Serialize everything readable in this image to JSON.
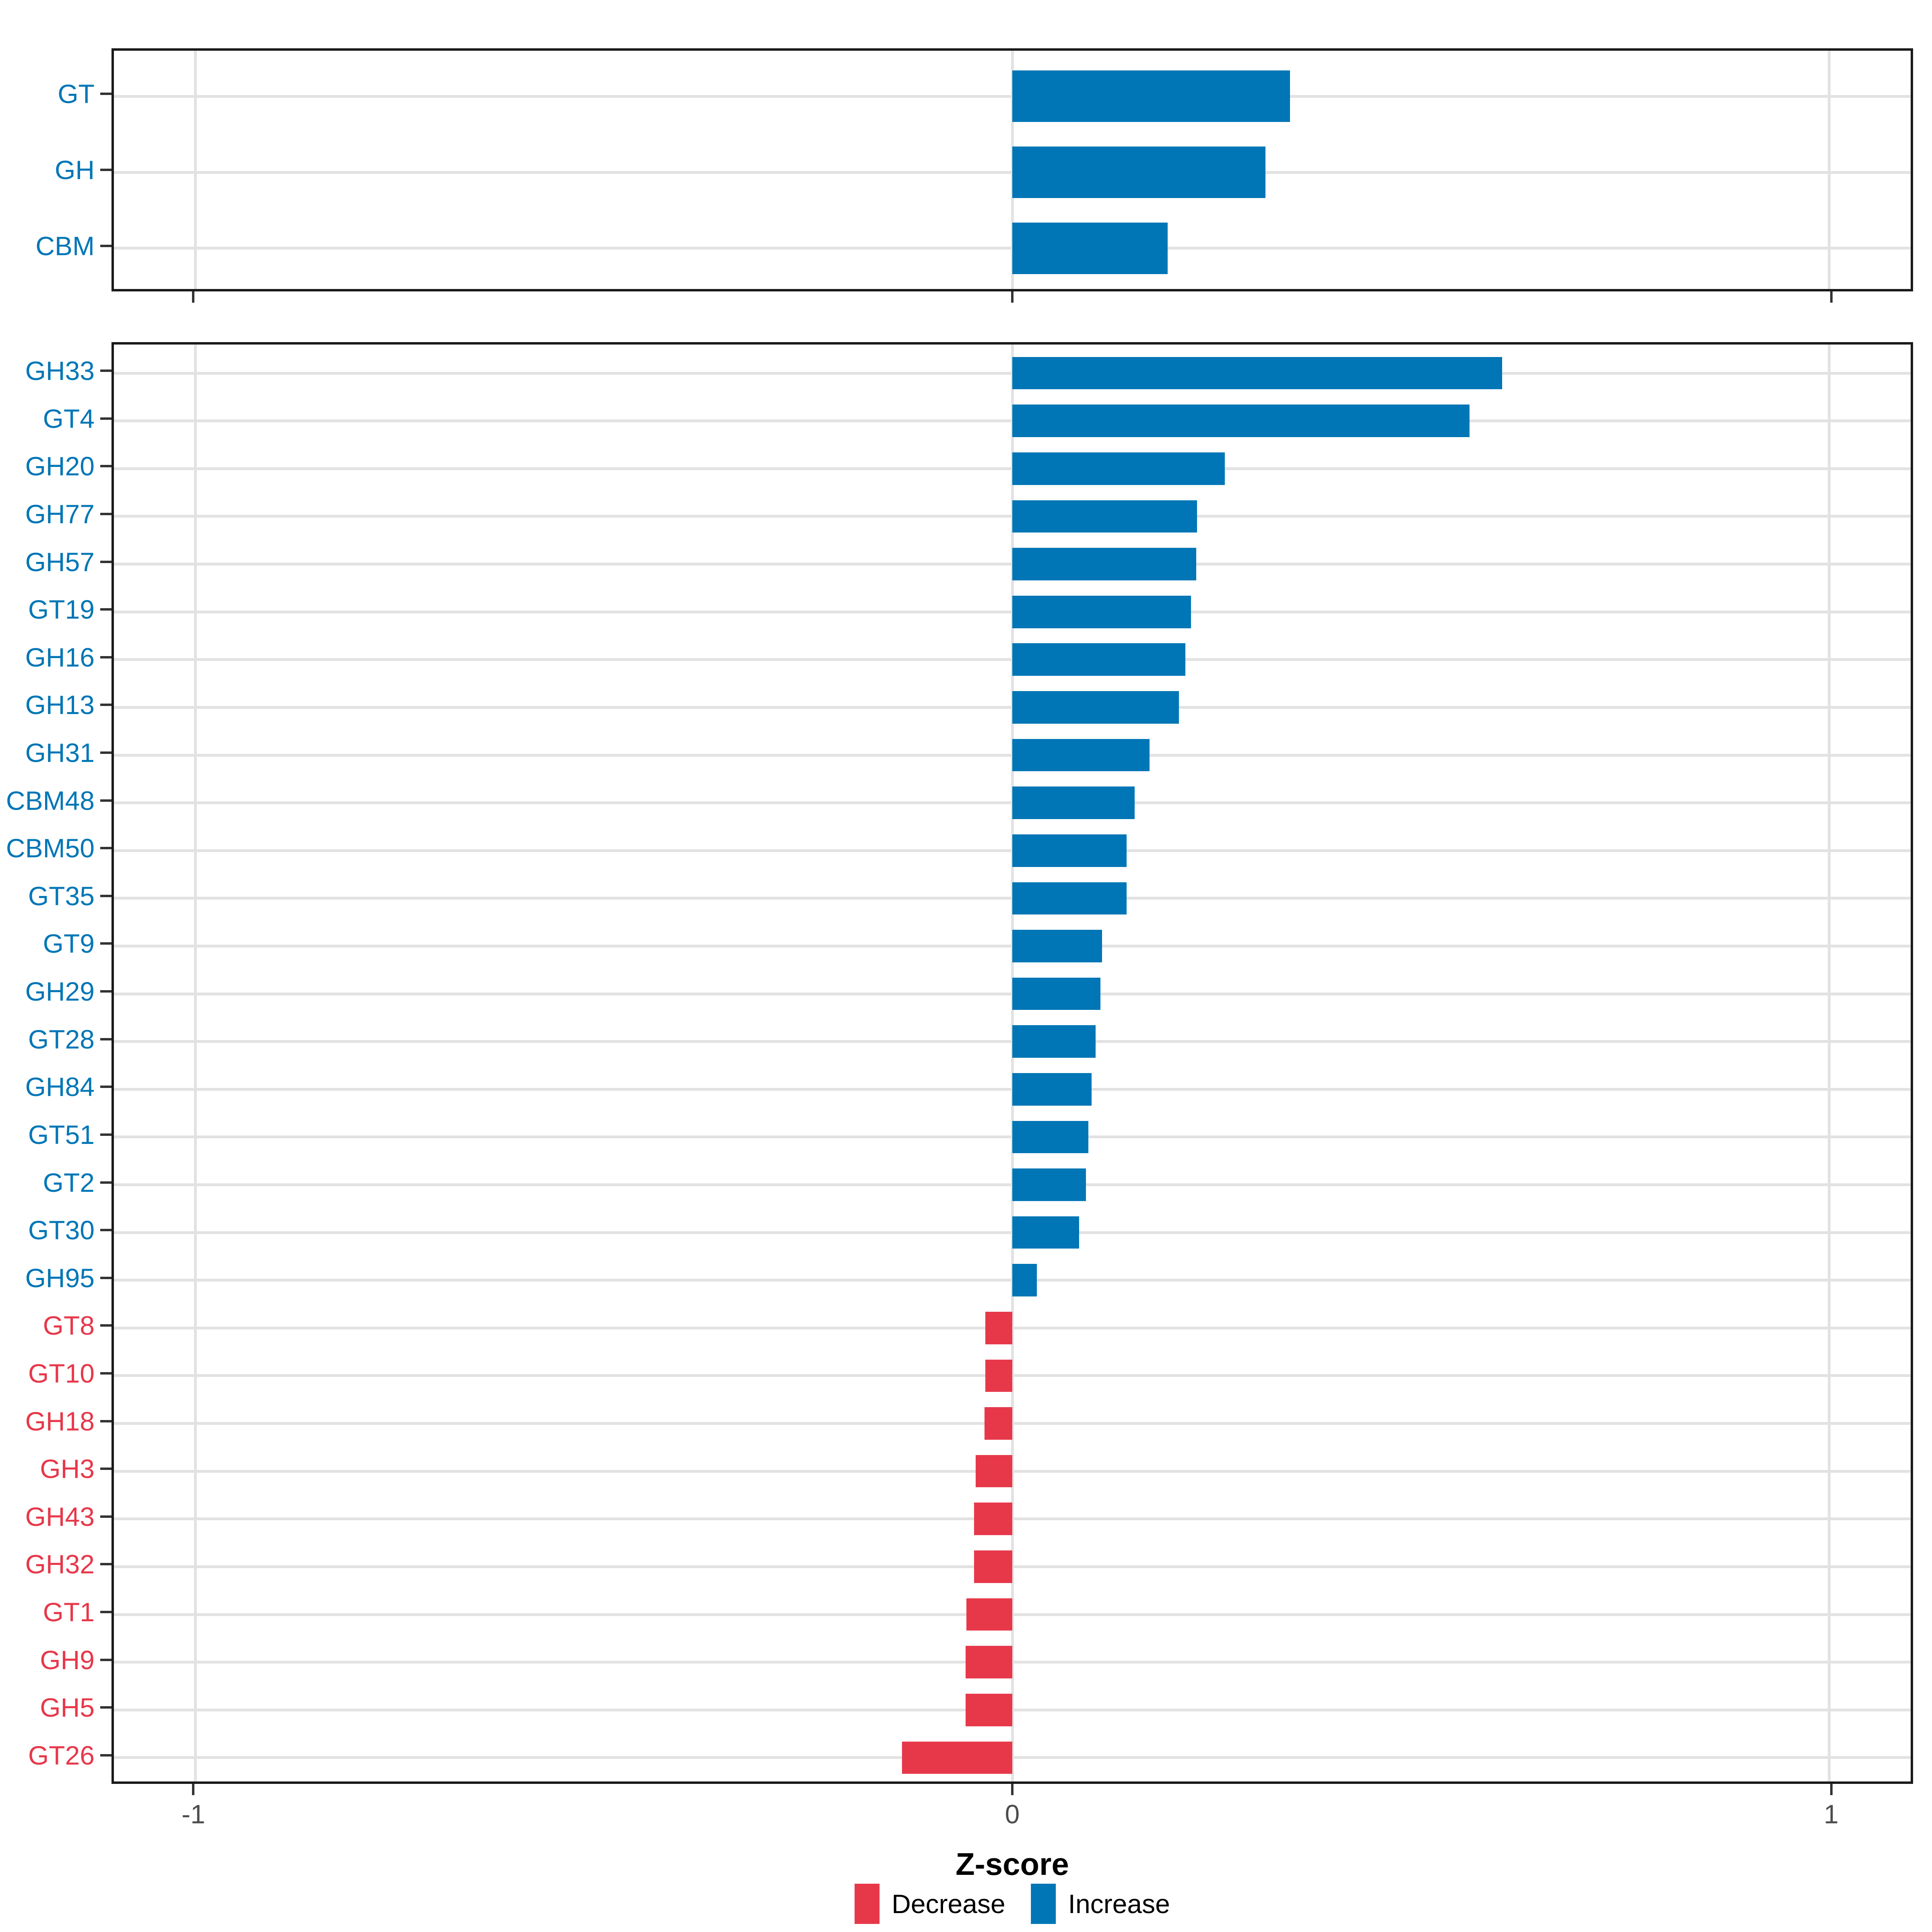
{
  "colors": {
    "increase": "#0076b6",
    "decrease": "#e7384a",
    "grid": "#e2e2e2",
    "panel_border": "#1a1a1a",
    "tick_mark": "#333333",
    "tick_label": "#4d4d4d",
    "axis_title": "#000000",
    "background": "#ffffff"
  },
  "x_axis": {
    "title": "Z-score",
    "tick_labels": [
      "-1",
      "0",
      "1"
    ],
    "tick_values": [
      -1,
      0,
      1
    ]
  },
  "legend": {
    "position": "bottom",
    "items": [
      {
        "label": "Decrease",
        "color": "#e7384a"
      },
      {
        "label": "Increase",
        "color": "#0076b6"
      }
    ]
  },
  "chart_data": [
    {
      "type": "bar",
      "orientation": "horizontal",
      "panel": "classes",
      "title": "",
      "xlabel": "Z-score",
      "ylabel": "",
      "xlim": [
        -1.1,
        1.1
      ],
      "x_ticks": [
        -1,
        0,
        1
      ],
      "grid": "major only",
      "categories": [
        "GT",
        "GH",
        "CBM"
      ],
      "values": [
        0.34,
        0.31,
        0.19
      ],
      "directions": [
        "Increase",
        "Increase",
        "Increase"
      ]
    },
    {
      "type": "bar",
      "orientation": "horizontal",
      "panel": "families",
      "title": "",
      "xlabel": "Z-score",
      "ylabel": "",
      "xlim": [
        -1.1,
        1.1
      ],
      "x_ticks": [
        -1,
        0,
        1
      ],
      "grid": "major only",
      "categories": [
        "GH33",
        "GT4",
        "GH20",
        "GH77",
        "GH57",
        "GT19",
        "GH16",
        "GH13",
        "GH31",
        "CBM48",
        "CBM50",
        "GT35",
        "GT9",
        "GH29",
        "GT28",
        "GH84",
        "GT51",
        "GT2",
        "GT30",
        "GH95",
        "GT8",
        "GT10",
        "GH18",
        "GH3",
        "GH43",
        "GH32",
        "GT1",
        "GH9",
        "GH5",
        "GT26"
      ],
      "values": [
        0.6,
        0.56,
        0.26,
        0.226,
        0.225,
        0.219,
        0.212,
        0.204,
        0.168,
        0.15,
        0.14,
        0.14,
        0.11,
        0.108,
        0.102,
        0.097,
        0.093,
        0.09,
        0.082,
        0.03,
        -0.033,
        -0.033,
        -0.034,
        -0.045,
        -0.047,
        -0.047,
        -0.056,
        -0.057,
        -0.057,
        -0.135
      ],
      "directions": [
        "Increase",
        "Increase",
        "Increase",
        "Increase",
        "Increase",
        "Increase",
        "Increase",
        "Increase",
        "Increase",
        "Increase",
        "Increase",
        "Increase",
        "Increase",
        "Increase",
        "Increase",
        "Increase",
        "Increase",
        "Increase",
        "Increase",
        "Increase",
        "Decrease",
        "Decrease",
        "Decrease",
        "Decrease",
        "Decrease",
        "Decrease",
        "Decrease",
        "Decrease",
        "Decrease",
        "Decrease"
      ]
    }
  ]
}
